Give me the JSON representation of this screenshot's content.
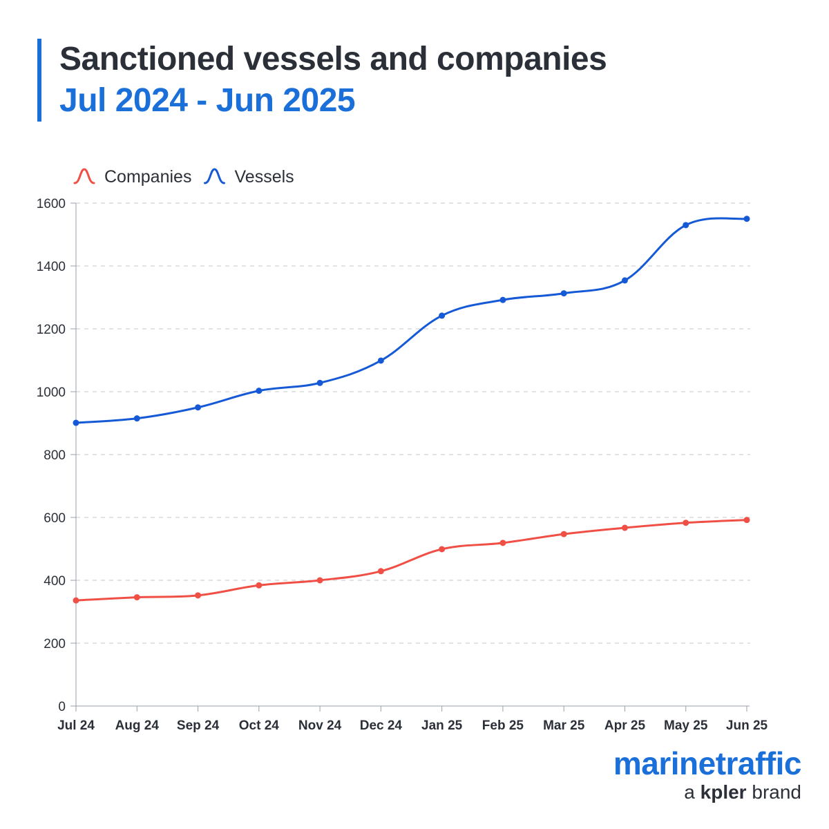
{
  "title": {
    "line1": "Sanctioned vessels and companies",
    "line2": "Jul 2024 - Jun 2025"
  },
  "colors": {
    "companies": "#ef4f45",
    "vessels": "#1659d6",
    "accent": "#1a6fd9"
  },
  "brand": {
    "name": "marinetraffic",
    "sub_prefix": "a",
    "sub_brand": "kpler",
    "sub_suffix": "brand"
  },
  "chart_data": {
    "type": "line",
    "title": "Sanctioned vessels and companies",
    "subtitle": "Jul 2024 - Jun 2025",
    "xlabel": "",
    "ylabel": "",
    "categories": [
      "Jul 24",
      "Aug 24",
      "Sep 24",
      "Oct 24",
      "Nov 24",
      "Dec 24",
      "Jan 25",
      "Feb 25",
      "Mar 25",
      "Apr 25",
      "May 25",
      "Jun 25"
    ],
    "ylim": [
      0,
      1600
    ],
    "yticks": [
      0,
      200,
      400,
      600,
      800,
      1000,
      1200,
      1400,
      1600
    ],
    "grid": true,
    "legend": "top-left",
    "series": [
      {
        "name": "Companies",
        "color": "#ef4f45",
        "values": [
          336,
          346,
          352,
          384,
          400,
          429,
          499,
          519,
          547,
          567,
          583,
          592
        ]
      },
      {
        "name": "Vessels",
        "color": "#1659d6",
        "values": [
          901,
          915,
          950,
          1003,
          1028,
          1099,
          1242,
          1292,
          1313,
          1354,
          1530,
          1550
        ]
      }
    ]
  }
}
